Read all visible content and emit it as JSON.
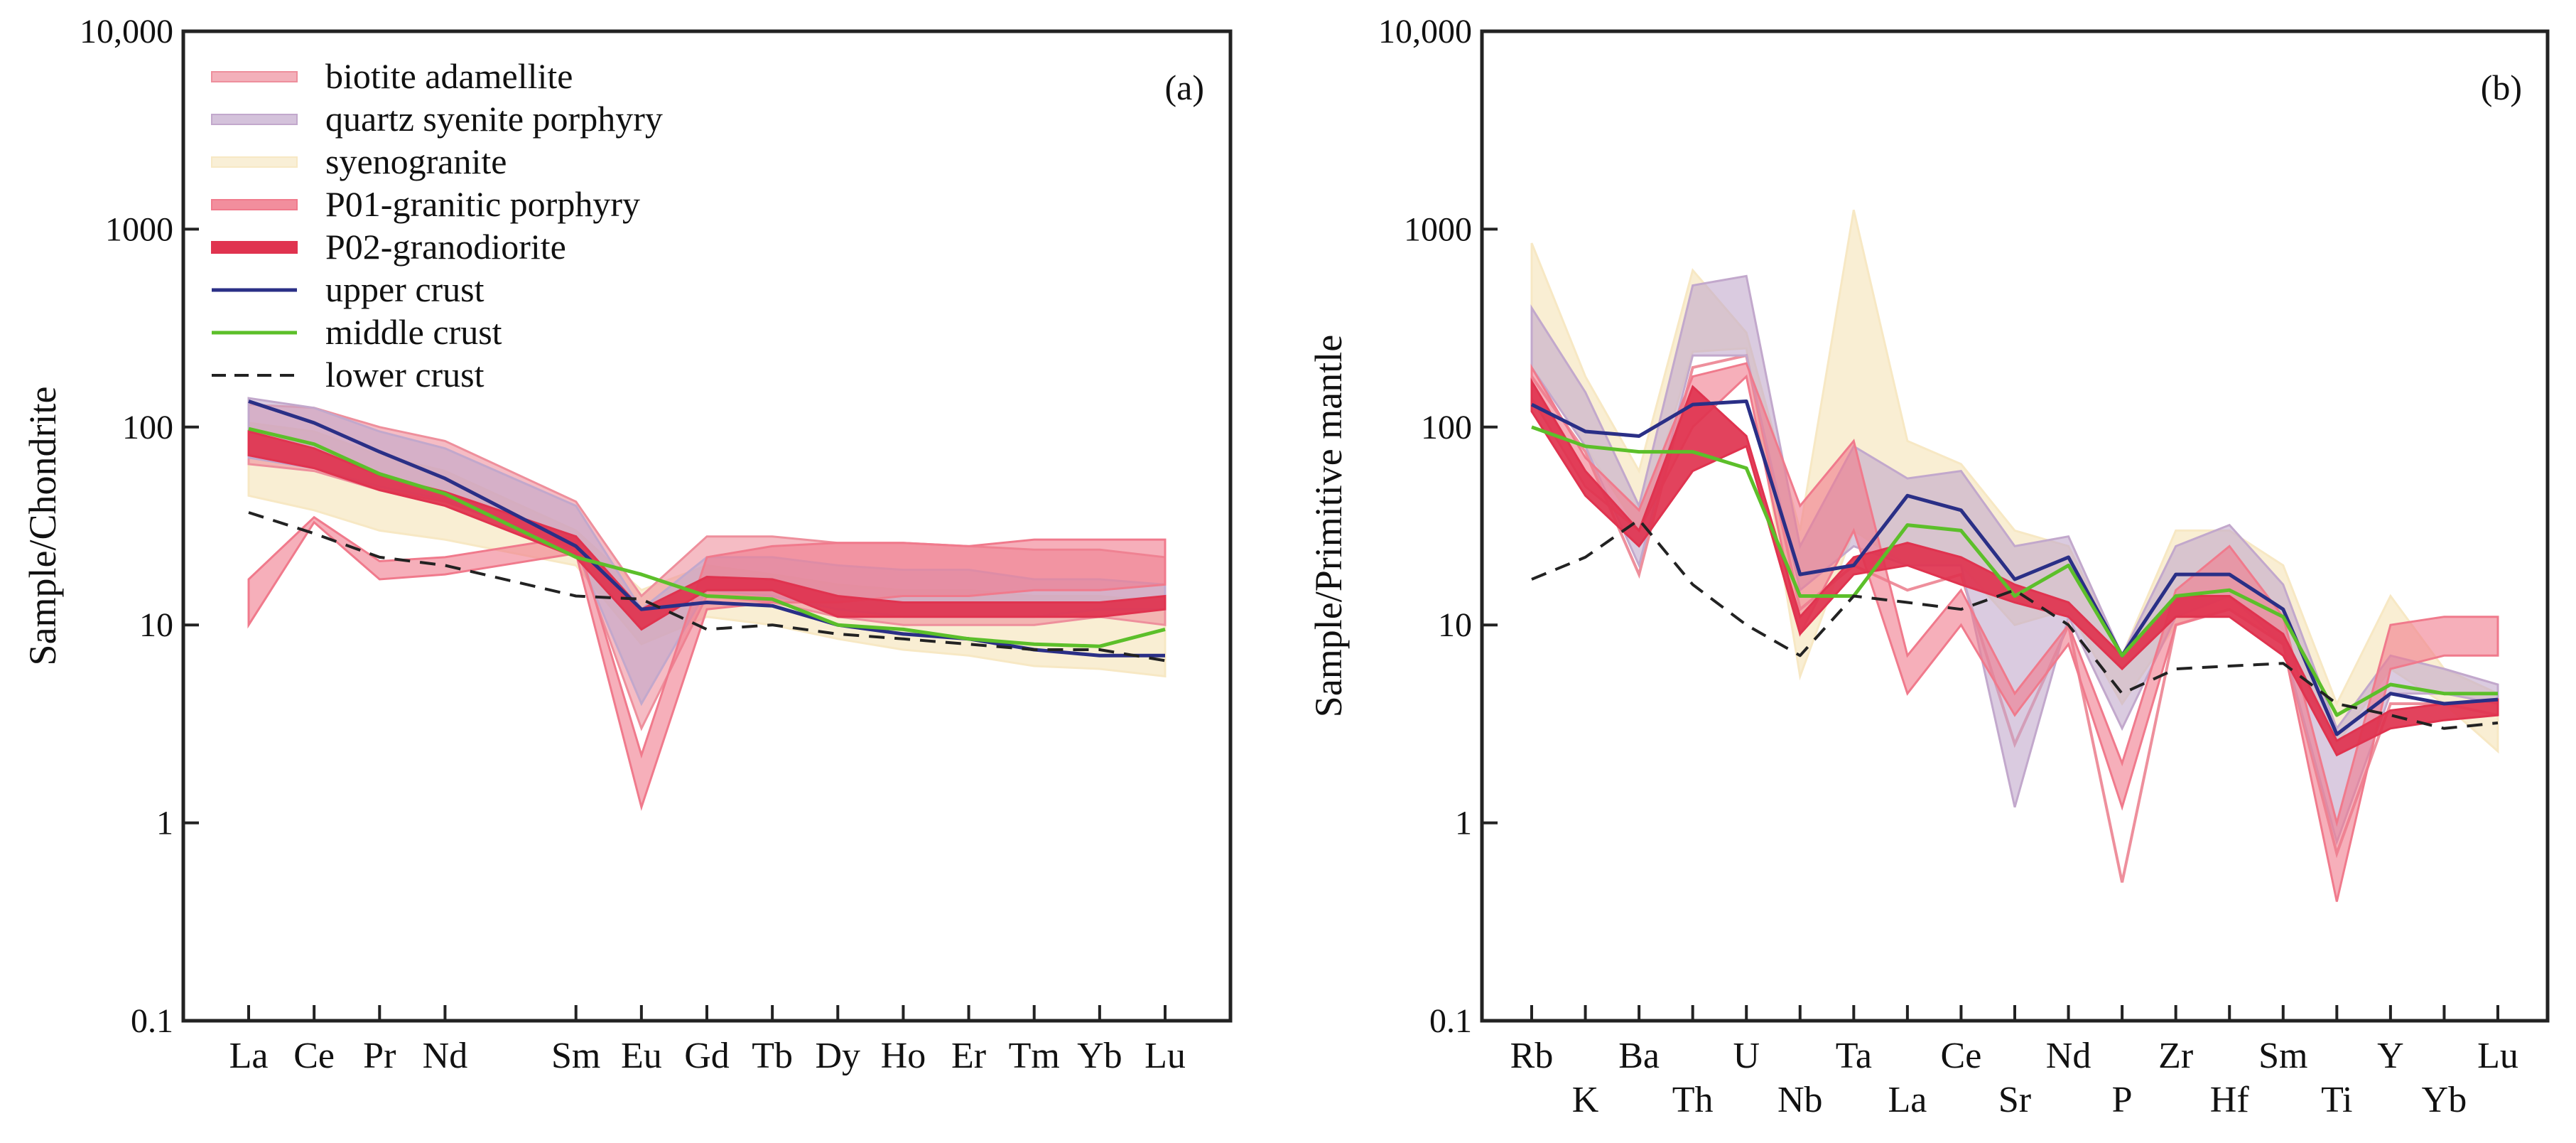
{
  "figure": {
    "colors": {
      "biotite_adamellite": "#ee8f9c",
      "quartz_syenite_porphyry": "#c2a8cc",
      "syenogranite": "#f7e8c4",
      "p01_granitic_porphyry": "#f07a8c",
      "p02_granodiorite": "#e0334f",
      "upper_crust": "#2a2f86",
      "middle_crust": "#5cbf2a",
      "lower_crust": "#222222"
    }
  },
  "chart_data": [
    {
      "type": "line",
      "panel_label": "(a)",
      "ylabel": "Sample/Chondrite",
      "yscale": "log",
      "ylim": [
        0.1,
        10000
      ],
      "y_ticks": [
        0.1,
        1,
        10,
        100,
        1000,
        10000
      ],
      "y_tick_labels": [
        "0.1",
        "1",
        "10",
        "100",
        "1000",
        "10,000"
      ],
      "categories": [
        "La",
        "Ce",
        "Pr",
        "Nd",
        "Sm",
        "Eu",
        "Gd",
        "Tb",
        "Dy",
        "Ho",
        "Er",
        "Tm",
        "Yb",
        "Lu"
      ],
      "x_positions": [
        0,
        1,
        2,
        3,
        5,
        6,
        7,
        8,
        9,
        10,
        11,
        12,
        13,
        14
      ],
      "legend": [
        {
          "label": "biotite adamellite",
          "kind": "band",
          "key": "biotite_adamellite"
        },
        {
          "label": "quartz syenite porphyry",
          "kind": "band",
          "key": "quartz_syenite_porphyry"
        },
        {
          "label": "syenogranite",
          "kind": "band",
          "key": "syenogranite"
        },
        {
          "label": "P01-granitic porphyry",
          "kind": "band",
          "key": "p01_granitic_porphyry"
        },
        {
          "label": "P02-granodiorite",
          "kind": "band",
          "key": "p02_granodiorite"
        },
        {
          "label": "upper crust",
          "kind": "line",
          "key": "upper_crust"
        },
        {
          "label": "middle crust",
          "kind": "line",
          "key": "middle_crust"
        },
        {
          "label": "lower crust",
          "kind": "dash",
          "key": "lower_crust"
        }
      ],
      "bands": [
        {
          "name": "syenogranite",
          "key": "syenogranite",
          "low": [
            45,
            38,
            30,
            27,
            20,
            8,
            11,
            10,
            8.5,
            7.5,
            7,
            6.2,
            6,
            5.5
          ],
          "high": [
            105,
            95,
            72,
            60,
            30,
            15,
            20,
            18,
            16,
            15,
            15,
            14,
            14,
            13
          ]
        },
        {
          "name": "biotite adamellite",
          "key": "biotite_adamellite",
          "low": [
            65,
            60,
            48,
            42,
            25,
            3,
            14,
            13,
            11,
            10,
            10,
            10,
            11,
            10
          ],
          "high": [
            130,
            125,
            100,
            85,
            42,
            14,
            28,
            28,
            26,
            26,
            25,
            24,
            24,
            22
          ]
        },
        {
          "name": "quartz syenite porphyry",
          "key": "quartz_syenite_porphyry",
          "low": [
            70,
            62,
            50,
            43,
            24,
            4,
            15,
            14,
            12,
            11,
            11,
            11,
            12,
            12
          ],
          "high": [
            140,
            125,
            95,
            78,
            40,
            12,
            22,
            22,
            20,
            19,
            19,
            17,
            17,
            16
          ]
        },
        {
          "name": "P01-granitic porphyry",
          "key": "p01_granitic_porphyry",
          "low": [
            10,
            33,
            17,
            18,
            23,
            1.2,
            12,
            13,
            13,
            14,
            14,
            15,
            15,
            16
          ],
          "high": [
            17,
            35,
            21,
            22,
            28,
            2.2,
            22,
            25,
            26,
            26,
            25,
            27,
            27,
            27
          ]
        },
        {
          "name": "P02-granodiorite",
          "key": "p02_granodiorite",
          "low": [
            72,
            62,
            48,
            40,
            22,
            9.5,
            15,
            15,
            11,
            11,
            11,
            11,
            11,
            12
          ],
          "high": [
            95,
            78,
            57,
            47,
            28,
            12,
            17.5,
            17,
            14,
            13,
            13,
            13,
            13,
            14
          ]
        }
      ],
      "series": [
        {
          "name": "upper crust",
          "key": "upper_crust",
          "style": "solid",
          "values": [
            135,
            105,
            75,
            55,
            25,
            12,
            13,
            12.5,
            10,
            9,
            8.5,
            7.5,
            7,
            7
          ]
        },
        {
          "name": "middle crust",
          "key": "middle_crust",
          "style": "solid",
          "values": [
            98,
            82,
            58,
            46,
            22,
            18,
            14,
            13.5,
            10,
            9.5,
            8.5,
            8,
            7.8,
            9.5
          ]
        },
        {
          "name": "lower crust",
          "key": "lower_crust",
          "style": "dashed",
          "values": [
            37,
            29,
            22,
            20,
            14,
            13.5,
            9.5,
            10,
            9,
            8.5,
            8,
            7.5,
            7.5,
            6.6
          ]
        }
      ]
    },
    {
      "type": "line",
      "panel_label": "(b)",
      "ylabel": "Sample/Primitive mantle",
      "yscale": "log",
      "ylim": [
        0.1,
        10000
      ],
      "y_ticks": [
        0.1,
        1,
        10,
        100,
        1000,
        10000
      ],
      "y_tick_labels": [
        "0.1",
        "1",
        "10",
        "100",
        "1000",
        "10,000"
      ],
      "categories": [
        "Rb",
        "K",
        "Ba",
        "Th",
        "U",
        "Nb",
        "Ta",
        "La",
        "Ce",
        "Sr",
        "Nd",
        "P",
        "Zr",
        "Hf",
        "Sm",
        "Ti",
        "Y",
        "Yb",
        "Lu"
      ],
      "label_rows": [
        0,
        1,
        0,
        1,
        0,
        1,
        0,
        1,
        0,
        1,
        0,
        1,
        0,
        1,
        0,
        1,
        0,
        1,
        0
      ],
      "bands": [
        {
          "name": "syenogranite",
          "key": "syenogranite",
          "low": [
            200,
            80,
            30,
            240,
            250,
            5.5,
            30,
            20,
            20,
            10,
            12,
            4,
            10,
            12,
            8,
            2.5,
            6,
            4,
            2.3
          ],
          "high": [
            850,
            180,
            60,
            620,
            300,
            30,
            1250,
            85,
            65,
            30,
            25,
            7,
            30,
            30,
            20,
            4,
            14,
            6,
            4.5
          ]
        },
        {
          "name": "biotite adamellite",
          "key": "biotite_adamellite",
          "low": [
            180,
            75,
            18,
            200,
            230,
            12,
            20,
            15,
            18,
            2.5,
            10,
            0.5,
            10,
            12,
            8,
            0.7,
            4,
            4,
            3.5
          ]
        },
        {
          "name": "quartz syenite porphyry",
          "key": "quartz_syenite_porphyry",
          "low": [
            200,
            80,
            20,
            230,
            230,
            15,
            25,
            20,
            20,
            1.2,
            11,
            3,
            11,
            14,
            8,
            0.8,
            4.5,
            4.5,
            4
          ],
          "high": [
            400,
            150,
            40,
            520,
            580,
            25,
            80,
            55,
            60,
            25,
            28,
            7,
            25,
            32,
            16,
            3,
            7,
            6,
            5
          ]
        },
        {
          "name": "P01-granitic porphyry",
          "key": "p01_granitic_porphyry",
          "low": [
            140,
            50,
            30,
            100,
            180,
            9,
            30,
            4.5,
            10,
            3.5,
            8,
            1.2,
            10,
            12,
            8,
            0.4,
            6,
            7,
            7
          ],
          "high": [
            200,
            70,
            38,
            180,
            210,
            40,
            85,
            7,
            15,
            4.5,
            10,
            2,
            15,
            25,
            11,
            1,
            10,
            11,
            11
          ]
        },
        {
          "name": "P02-granodiorite",
          "key": "p02_granodiorite",
          "low": [
            120,
            45,
            25,
            60,
            80,
            9,
            18,
            20,
            16,
            13,
            11,
            6,
            11,
            11,
            7,
            2.2,
            3,
            3.3,
            3.5
          ],
          "high": [
            170,
            60,
            30,
            160,
            90,
            11,
            22,
            26,
            22,
            16,
            13,
            7,
            14,
            14,
            9,
            2.6,
            3.7,
            4,
            4.2
          ]
        }
      ],
      "series": [
        {
          "name": "upper crust",
          "key": "upper_crust",
          "style": "solid",
          "values": [
            130,
            95,
            90,
            130,
            135,
            18,
            20,
            45,
            38,
            17,
            22,
            7,
            18,
            18,
            12,
            2.8,
            4.5,
            4,
            4.2
          ]
        },
        {
          "name": "middle crust",
          "key": "middle_crust",
          "style": "solid",
          "values": [
            100,
            80,
            75,
            75,
            62,
            14,
            14,
            32,
            30,
            14,
            20,
            7,
            14,
            15,
            11,
            3.5,
            5,
            4.5,
            4.5
          ]
        },
        {
          "name": "lower crust",
          "key": "lower_crust",
          "style": "dashed",
          "values": [
            17,
            22,
            34,
            16,
            10,
            7,
            14,
            13,
            12,
            15,
            10,
            4.5,
            6,
            6.2,
            6.4,
            4,
            3.5,
            3,
            3.2
          ]
        }
      ]
    }
  ]
}
